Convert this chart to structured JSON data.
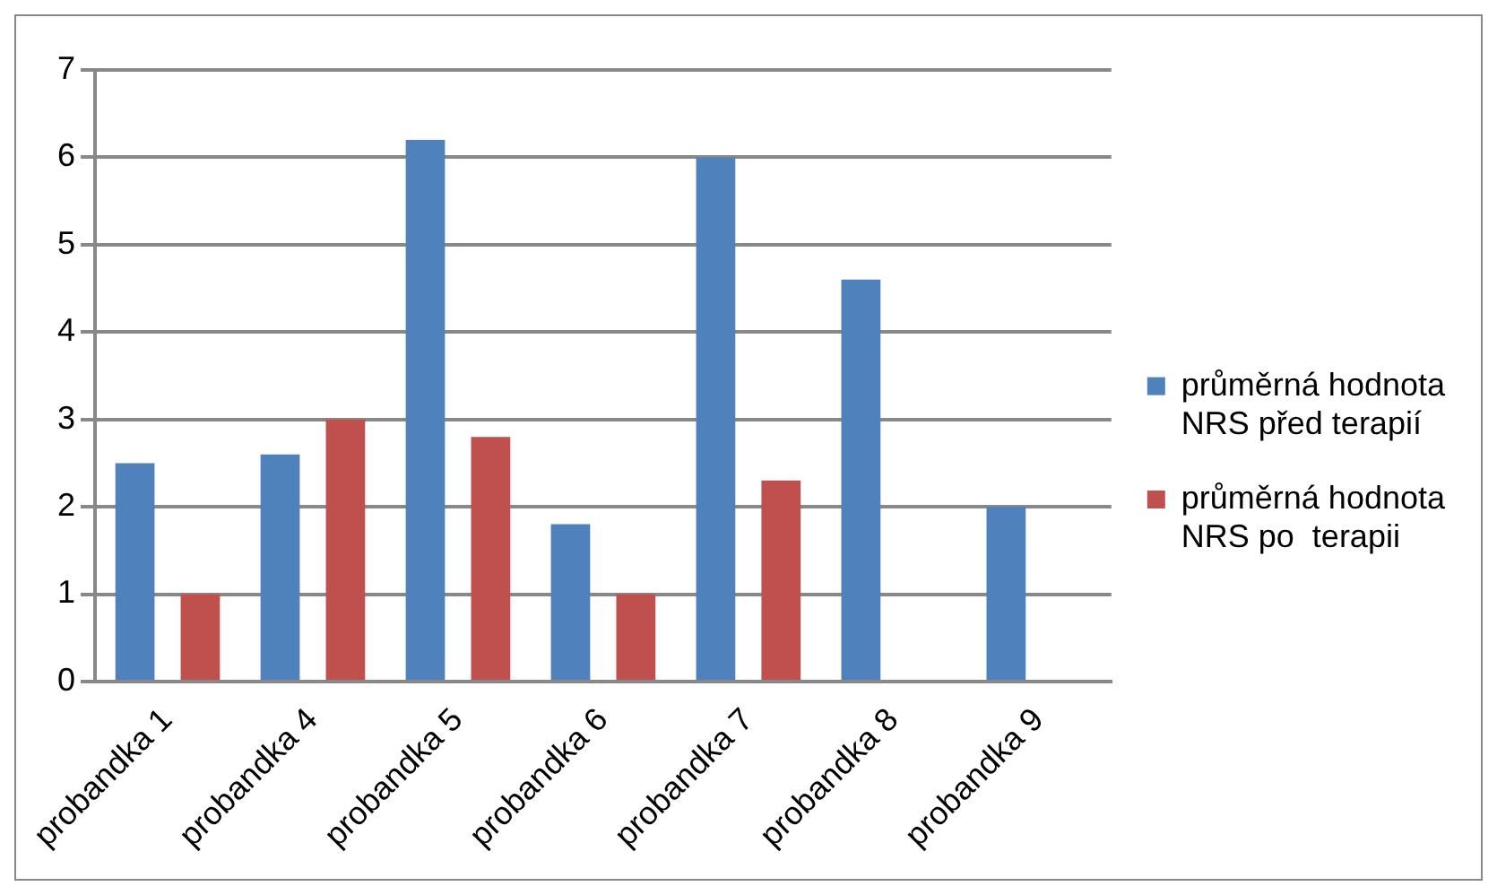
{
  "chart_data": {
    "type": "bar",
    "categories": [
      "probandka 1",
      "probandka 4",
      "probandka 5",
      "probandka 6",
      "probandka 7",
      "probandka 8",
      "probandka 9"
    ],
    "series": [
      {
        "name": "průměrná hodnota NRS před terapií",
        "color": "#4f81bd",
        "values": [
          2.5,
          2.6,
          6.2,
          1.8,
          6,
          4.6,
          2
        ]
      },
      {
        "name": "průměrná hodnota NRS po  terapii",
        "color": "#c0504d",
        "values": [
          1,
          3,
          2.8,
          1,
          2.3,
          0,
          0
        ]
      }
    ],
    "ylim": [
      0,
      7
    ],
    "yticks": [
      0,
      1,
      2,
      3,
      4,
      5,
      6,
      7
    ],
    "grid": "y",
    "legend": "right"
  }
}
